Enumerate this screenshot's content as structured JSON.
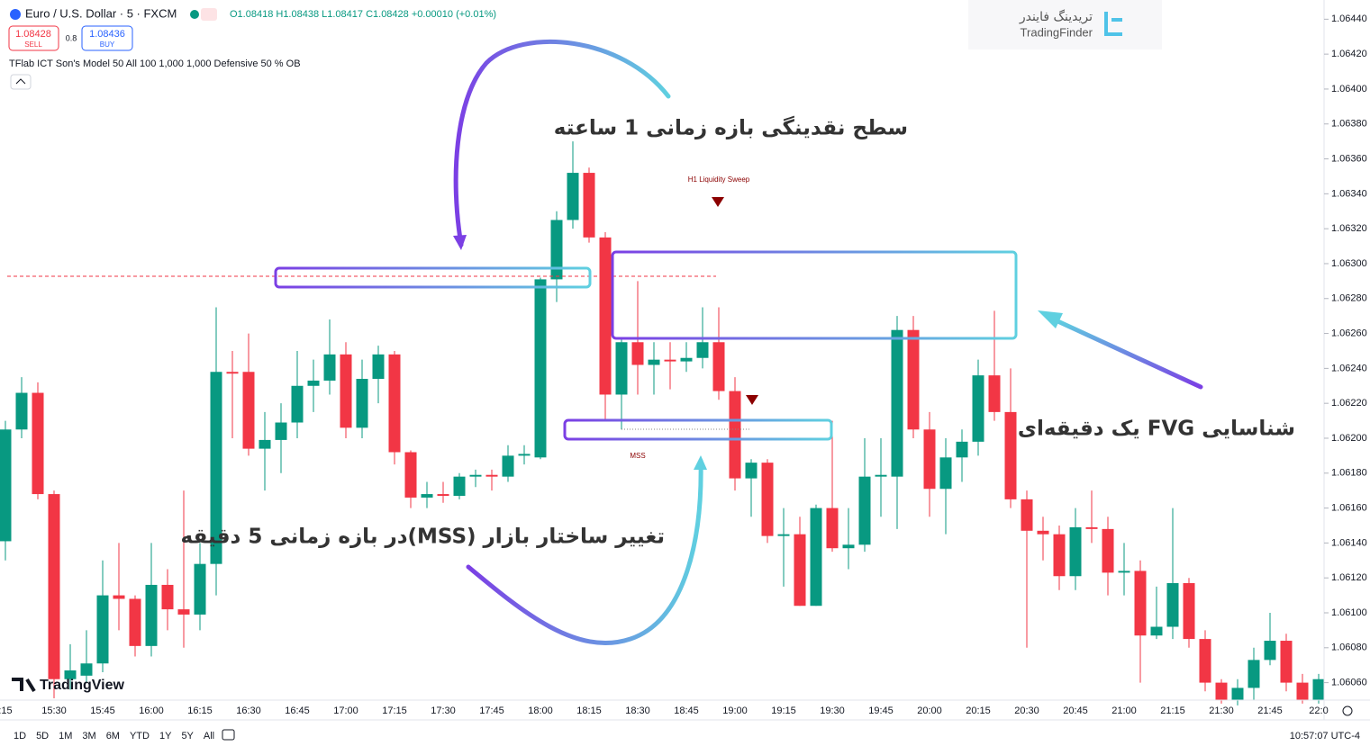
{
  "chart_data": {
    "type": "candlestick",
    "symbol": "Euro / U.S. Dollar · 5 · FXCM",
    "ohlc_readout": "O1.08418 H1.08438 L1.08417 C1.08428 +0.00010 (+0.01%)",
    "sell_price": "1.08428",
    "sell_label": "SELL",
    "spread": "0.8",
    "buy_price": "1.08436",
    "buy_label": "BUY",
    "indicator": "TFlab ICT Son's Model 50 All 100 1,000 1,000 Defensive 50 % OB",
    "annotations": [
      "سطح نقدینگی بازه زمانی 1 ساعته",
      "تغییر ساختار بازار (MSS)در بازه زمانی 5 دقیقه",
      "شناسایی FVG یک دقیقه‌ای"
    ],
    "markers": [
      "H1 Liquidity Sweep",
      "MSS"
    ],
    "watermark": "TradingView",
    "brand": "TradingFinder",
    "brand_fa": "تریدینگ فایندر",
    "ranges": [
      "1D",
      "5D",
      "1M",
      "3M",
      "6M",
      "YTD",
      "1Y",
      "5Y",
      "All"
    ],
    "clock": "10:57:07 UTC-4",
    "up_color": "#089981",
    "down_color": "#f23645",
    "categories": [
      ":15",
      null,
      null,
      "15:30",
      null,
      null,
      "15:45",
      null,
      null,
      "16:00",
      null,
      null,
      "16:15",
      null,
      null,
      "16:30",
      null,
      null,
      "16:45",
      null,
      null,
      "17:00",
      null,
      null,
      "17:15",
      null,
      null,
      "17:30",
      null,
      null,
      "17:45",
      null,
      null,
      "18:00",
      null,
      null,
      "18:15",
      null,
      null,
      "18:30",
      null,
      null,
      "18:45",
      null,
      null,
      "19:00",
      null,
      null,
      "19:15",
      null,
      null,
      "19:30",
      null,
      null,
      "19:45",
      null,
      null,
      "20:00",
      null,
      null,
      "20:15",
      null,
      null,
      "20:30",
      null,
      null,
      "20:45",
      null,
      null,
      "21:00",
      null,
      null,
      "21:15",
      null,
      null,
      "21:30",
      null,
      null,
      "21:45",
      null,
      null,
      "22:0"
    ],
    "open": [
      1.06141,
      1.06205,
      1.06226,
      1.06168,
      1.06062,
      1.06064,
      1.06071,
      1.0611,
      1.06108,
      1.06081,
      1.06116,
      1.06102,
      1.06099,
      1.06128,
      1.06238,
      1.06238,
      1.06194,
      1.06199,
      1.06209,
      1.0623,
      1.06233,
      1.06248,
      1.06206,
      1.06234,
      1.06248,
      1.06192,
      1.06166,
      1.06168,
      1.06167,
      1.06178,
      1.06179,
      1.06178,
      1.0619,
      1.06189,
      1.06291,
      1.06325,
      1.06352,
      1.06315,
      1.06225,
      1.06255,
      1.06242,
      1.06245,
      1.06244,
      1.06246,
      1.06255,
      1.06227,
      1.06177,
      1.06186,
      1.06144,
      1.06145,
      1.06104,
      1.0616,
      1.06137,
      1.06139,
      1.06178,
      1.06178,
      1.06262,
      1.06205,
      1.06171,
      1.06189,
      1.06198,
      1.06236,
      1.06215,
      1.06165,
      1.06147,
      1.06145,
      1.06121,
      1.06149,
      1.06148,
      1.06123,
      1.06124,
      1.06087,
      1.06092,
      1.06117,
      1.06085,
      1.0606,
      1.0605,
      1.06057,
      1.06073,
      1.06084,
      1.0606,
      1.0605
    ],
    "high": [
      1.0621,
      1.06235,
      1.06232,
      1.0617,
      1.06082,
      1.0609,
      1.0613,
      1.0614,
      1.0611,
      1.0614,
      1.06125,
      1.0617,
      1.0614,
      1.06275,
      1.0625,
      1.0626,
      1.06215,
      1.0622,
      1.0625,
      1.06245,
      1.06268,
      1.06255,
      1.06245,
      1.06253,
      1.0625,
      1.06193,
      1.06175,
      1.06175,
      1.0618,
      1.06182,
      1.06182,
      1.06196,
      1.06196,
      1.06292,
      1.0633,
      1.0637,
      1.06355,
      1.06318,
      1.06258,
      1.0629,
      1.06255,
      1.06255,
      1.06255,
      1.06275,
      1.06275,
      1.06235,
      1.06188,
      1.06188,
      1.0616,
      1.06155,
      1.06162,
      1.0621,
      1.0616,
      1.062,
      1.062,
      1.0627,
      1.0627,
      1.06215,
      1.062,
      1.06205,
      1.06245,
      1.06273,
      1.0624,
      1.0617,
      1.06155,
      1.0615,
      1.0616,
      1.0617,
      1.06155,
      1.0614,
      1.0613,
      1.06115,
      1.0616,
      1.0612,
      1.0609,
      1.06062,
      1.06062,
      1.0608,
      1.061,
      1.06088,
      1.06065,
      1.06065
    ],
    "low": [
      1.0613,
      1.062,
      1.06165,
      1.06051,
      1.06056,
      1.0606,
      1.06066,
      1.0609,
      1.06075,
      1.06075,
      1.0609,
      1.0608,
      1.0609,
      1.0611,
      1.062,
      1.0619,
      1.0617,
      1.0618,
      1.062,
      1.06215,
      1.06225,
      1.062,
      1.062,
      1.0622,
      1.06185,
      1.0616,
      1.0616,
      1.06163,
      1.06165,
      1.06172,
      1.0617,
      1.06175,
      1.06185,
      1.06188,
      1.06278,
      1.0632,
      1.06312,
      1.0621,
      1.06205,
      1.06225,
      1.06225,
      1.06228,
      1.06238,
      1.0624,
      1.06222,
      1.0617,
      1.06155,
      1.0614,
      1.06115,
      1.06104,
      1.06104,
      1.06135,
      1.06125,
      1.06135,
      1.06155,
      1.06148,
      1.062,
      1.06155,
      1.06145,
      1.06175,
      1.0619,
      1.0621,
      1.0616,
      1.0608,
      1.0613,
      1.06113,
      1.06113,
      1.0614,
      1.0611,
      1.0611,
      1.0606,
      1.06085,
      1.06085,
      1.0608,
      1.06055,
      1.06048,
      1.06047,
      1.0605,
      1.0607,
      1.06055,
      1.06048,
      1.06048
    ],
    "close": [
      1.06205,
      1.06226,
      1.06168,
      1.06062,
      1.06067,
      1.06071,
      1.0611,
      1.06108,
      1.06081,
      1.06116,
      1.06102,
      1.06099,
      1.06128,
      1.06238,
      1.06237,
      1.06194,
      1.06199,
      1.06209,
      1.0623,
      1.06233,
      1.06248,
      1.06206,
      1.06234,
      1.06248,
      1.06192,
      1.06166,
      1.06168,
      1.06167,
      1.06178,
      1.06179,
      1.06178,
      1.0619,
      1.06191,
      1.06291,
      1.06325,
      1.06352,
      1.06315,
      1.06225,
      1.06255,
      1.06242,
      1.06245,
      1.06244,
      1.06246,
      1.06255,
      1.06227,
      1.06177,
      1.06186,
      1.06144,
      1.06145,
      1.06104,
      1.0616,
      1.06137,
      1.06139,
      1.06178,
      1.06179,
      1.06262,
      1.06205,
      1.06171,
      1.06189,
      1.06198,
      1.06236,
      1.06215,
      1.06165,
      1.06147,
      1.06145,
      1.06121,
      1.06149,
      1.06148,
      1.06123,
      1.06124,
      1.06087,
      1.06092,
      1.06117,
      1.06085,
      1.0606,
      1.0605,
      1.06057,
      1.06073,
      1.06084,
      1.0606,
      1.0605,
      1.06062
    ],
    "ylim": [
      1.0605,
      1.06451
    ],
    "yticks": [
      {
        "value": 1.0606,
        "label": "1.06060"
      },
      {
        "value": 1.0608,
        "label": "1.06080"
      },
      {
        "value": 1.061,
        "label": "1.06100"
      },
      {
        "value": 1.0612,
        "label": "1.06120"
      },
      {
        "value": 1.0614,
        "label": "1.06140"
      },
      {
        "value": 1.0616,
        "label": "1.06160"
      },
      {
        "value": 1.0618,
        "label": "1.06180"
      },
      {
        "value": 1.062,
        "label": "1.06200"
      },
      {
        "value": 1.0622,
        "label": "1.06220"
      },
      {
        "value": 1.0624,
        "label": "1.06240"
      },
      {
        "value": 1.0626,
        "label": "1.06260"
      },
      {
        "value": 1.0628,
        "label": "1.06280"
      },
      {
        "value": 1.063,
        "label": "1.06300"
      },
      {
        "value": 1.0632,
        "label": "1.06320"
      },
      {
        "value": 1.0634,
        "label": "1.06340"
      },
      {
        "value": 1.0636,
        "label": "1.06360"
      },
      {
        "value": 1.0638,
        "label": "1.06380"
      },
      {
        "value": 1.064,
        "label": "1.06400"
      },
      {
        "value": 1.0642,
        "label": "1.06420"
      },
      {
        "value": 1.0644,
        "label": "1.06440"
      }
    ]
  }
}
